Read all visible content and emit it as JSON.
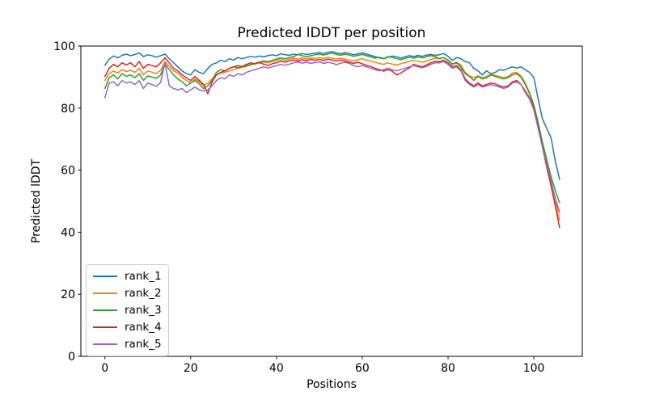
{
  "figure": {
    "background": "#ffffff",
    "spine_color": "#000000",
    "legend_border_color": "#cccccc"
  },
  "chart_data": {
    "type": "line",
    "title": "Predicted lDDT per position",
    "xlabel": "Positions",
    "ylabel": "Predicted lDDT",
    "xlim": [
      -5.6,
      111.3
    ],
    "ylim": [
      0,
      100
    ],
    "xticks": [
      0,
      20,
      40,
      60,
      80,
      100
    ],
    "yticks": [
      0,
      20,
      40,
      60,
      80,
      100
    ],
    "grid": false,
    "legend_position": "lower-left",
    "x": [
      0,
      1,
      2,
      3,
      4,
      5,
      6,
      7,
      8,
      9,
      10,
      11,
      12,
      13,
      14,
      15,
      16,
      17,
      18,
      19,
      20,
      21,
      22,
      23,
      24,
      25,
      26,
      27,
      28,
      29,
      30,
      31,
      32,
      33,
      34,
      35,
      36,
      37,
      38,
      39,
      40,
      41,
      42,
      43,
      44,
      45,
      46,
      47,
      48,
      49,
      50,
      51,
      52,
      53,
      54,
      55,
      56,
      57,
      58,
      59,
      60,
      61,
      62,
      63,
      64,
      65,
      66,
      67,
      68,
      69,
      70,
      71,
      72,
      73,
      74,
      75,
      76,
      77,
      78,
      79,
      80,
      81,
      82,
      83,
      84,
      85,
      86,
      87,
      88,
      89,
      90,
      91,
      92,
      93,
      94,
      95,
      96,
      97,
      98,
      99,
      100,
      101,
      102,
      103,
      104,
      105,
      106
    ],
    "series": [
      {
        "name": "rank_1",
        "color": "#1f77b4",
        "values": [
          93.8,
          95.8,
          96.8,
          96.2,
          97.0,
          97.4,
          96.9,
          97.3,
          97.8,
          96.6,
          97.2,
          96.9,
          96.4,
          96.9,
          97.4,
          95.9,
          94.6,
          93.3,
          92.0,
          91.1,
          90.7,
          92.4,
          91.5,
          91.1,
          92.8,
          94.1,
          94.6,
          95.4,
          95.0,
          95.9,
          95.5,
          96.3,
          95.9,
          96.3,
          96.7,
          96.4,
          96.8,
          96.5,
          96.9,
          97.2,
          96.9,
          97.5,
          97.2,
          97.0,
          97.4,
          97.2,
          97.6,
          97.3,
          97.5,
          97.7,
          97.9,
          97.6,
          98.0,
          98.2,
          97.8,
          97.5,
          97.9,
          97.6,
          97.2,
          97.5,
          97.8,
          97.4,
          97.0,
          96.6,
          96.2,
          95.9,
          96.4,
          96.8,
          96.5,
          96.1,
          96.6,
          96.9,
          96.6,
          97.0,
          96.7,
          97.1,
          97.3,
          97.0,
          97.2,
          97.6,
          96.7,
          95.4,
          96.3,
          95.9,
          95.0,
          94.6,
          92.8,
          92.0,
          90.7,
          92.0,
          91.1,
          91.5,
          92.4,
          92.2,
          92.8,
          93.3,
          92.9,
          93.3,
          92.4,
          91.5,
          89.8,
          83.0,
          76.5,
          73.5,
          70.5,
          63.0,
          57.0
        ]
      },
      {
        "name": "rank_2",
        "color": "#ff7f0e",
        "values": [
          88.9,
          91.1,
          92.0,
          91.3,
          92.4,
          91.8,
          92.2,
          91.5,
          92.8,
          90.7,
          92.0,
          91.6,
          91.1,
          92.2,
          95.0,
          93.5,
          92.0,
          91.3,
          89.8,
          88.9,
          88.1,
          89.4,
          88.5,
          87.2,
          88.1,
          89.4,
          90.7,
          91.3,
          91.5,
          92.0,
          92.4,
          92.8,
          93.1,
          93.5,
          93.9,
          94.2,
          94.6,
          94.9,
          94.6,
          95.0,
          95.3,
          95.7,
          95.4,
          95.8,
          96.1,
          95.8,
          96.2,
          95.9,
          96.2,
          96.0,
          96.3,
          96.0,
          96.4,
          96.1,
          95.8,
          96.1,
          95.8,
          95.5,
          95.2,
          95.6,
          95.9,
          95.5,
          95.1,
          94.8,
          94.4,
          94.1,
          94.6,
          94.2,
          93.9,
          94.3,
          94.7,
          95.1,
          95.4,
          95.1,
          94.8,
          95.2,
          95.7,
          96.1,
          96.0,
          96.3,
          95.5,
          94.3,
          94.8,
          93.9,
          91.5,
          90.4,
          89.8,
          90.4,
          89.8,
          90.2,
          90.9,
          90.5,
          90.2,
          89.8,
          90.2,
          91.3,
          91.5,
          90.4,
          88.1,
          85.0,
          81.1,
          75.5,
          69.0,
          62.5,
          56.5,
          50.5,
          44.0
        ]
      },
      {
        "name": "rank_3",
        "color": "#2ca02c",
        "values": [
          86.3,
          89.8,
          90.7,
          89.4,
          91.1,
          90.2,
          90.7,
          89.8,
          91.1,
          88.9,
          90.4,
          90.0,
          89.6,
          90.7,
          94.3,
          92.4,
          90.7,
          89.4,
          88.5,
          87.2,
          88.1,
          88.9,
          87.8,
          86.3,
          87.2,
          88.9,
          91.5,
          92.4,
          92.0,
          92.8,
          93.3,
          93.0,
          93.4,
          93.7,
          94.1,
          94.4,
          94.8,
          95.2,
          95.0,
          95.4,
          95.8,
          96.2,
          95.9,
          96.3,
          96.6,
          97.3,
          96.9,
          96.6,
          96.9,
          97.2,
          97.4,
          97.1,
          97.5,
          97.7,
          97.3,
          97.0,
          97.4,
          97.1,
          96.7,
          97.0,
          97.3,
          96.9,
          96.5,
          96.1,
          96.4,
          96.0,
          96.6,
          96.3,
          95.9,
          95.6,
          96.0,
          96.4,
          96.1,
          96.5,
          96.2,
          96.6,
          96.9,
          96.6,
          95.9,
          96.3,
          95.4,
          94.1,
          94.6,
          93.3,
          91.1,
          90.2,
          88.9,
          90.2,
          89.4,
          89.8,
          90.7,
          90.2,
          89.8,
          89.4,
          89.8,
          90.7,
          91.1,
          90.0,
          87.6,
          84.6,
          80.7,
          75.0,
          69.0,
          63.5,
          58.0,
          53.5,
          49.5
        ]
      },
      {
        "name": "rank_4",
        "color": "#d62728",
        "values": [
          90.2,
          92.8,
          94.1,
          93.3,
          94.6,
          93.9,
          94.6,
          93.3,
          95.0,
          92.8,
          94.1,
          93.7,
          93.3,
          94.6,
          96.2,
          94.6,
          92.8,
          92.0,
          90.7,
          89.8,
          88.9,
          90.2,
          88.9,
          87.6,
          84.6,
          88.5,
          90.7,
          91.5,
          92.0,
          92.8,
          93.3,
          93.7,
          93.4,
          94.1,
          94.6,
          94.3,
          94.7,
          94.2,
          93.7,
          94.3,
          94.6,
          95.1,
          94.8,
          95.2,
          95.5,
          95.2,
          95.6,
          95.3,
          95.7,
          95.4,
          95.7,
          95.3,
          95.8,
          95.5,
          95.1,
          95.5,
          95.2,
          94.8,
          94.4,
          94.8,
          94.3,
          93.8,
          93.4,
          92.8,
          92.4,
          91.9,
          92.4,
          91.9,
          90.7,
          91.3,
          92.2,
          93.0,
          94.1,
          93.7,
          93.3,
          93.9,
          94.6,
          95.1,
          95.0,
          95.4,
          94.6,
          93.3,
          93.7,
          92.4,
          89.4,
          88.1,
          87.2,
          88.1,
          87.2,
          87.6,
          88.1,
          87.8,
          87.2,
          86.8,
          87.2,
          88.5,
          88.9,
          87.6,
          85.5,
          83.3,
          79.8,
          74.0,
          67.5,
          61.0,
          55.0,
          48.5,
          41.5
        ]
      },
      {
        "name": "rank_5",
        "color": "#9467bd",
        "values": [
          83.3,
          88.1,
          88.5,
          87.2,
          88.9,
          88.1,
          88.5,
          87.6,
          88.9,
          86.3,
          88.1,
          87.6,
          87.0,
          88.3,
          94.5,
          87.2,
          86.3,
          85.9,
          86.3,
          85.0,
          85.9,
          86.8,
          85.9,
          85.5,
          85.9,
          87.2,
          88.9,
          89.8,
          89.4,
          90.7,
          90.2,
          91.1,
          90.7,
          91.5,
          92.0,
          92.4,
          92.8,
          93.3,
          92.9,
          93.3,
          93.7,
          94.1,
          93.8,
          94.2,
          94.6,
          94.9,
          94.5,
          94.8,
          94.4,
          94.7,
          94.9,
          94.4,
          94.8,
          94.5,
          94.0,
          94.5,
          94.8,
          94.4,
          93.7,
          93.3,
          93.7,
          93.3,
          92.8,
          92.4,
          92.0,
          92.4,
          92.9,
          92.4,
          92.0,
          92.4,
          92.9,
          93.3,
          93.7,
          93.3,
          93.0,
          93.5,
          94.1,
          94.6,
          94.6,
          95.0,
          94.1,
          92.8,
          93.3,
          92.0,
          88.9,
          87.6,
          86.8,
          87.6,
          86.8,
          87.2,
          87.6,
          87.2,
          86.8,
          86.3,
          86.8,
          88.1,
          88.5,
          87.6,
          85.0,
          82.9,
          79.4,
          73.5,
          67.5,
          62.0,
          56.5,
          51.0,
          46.5
        ]
      }
    ]
  },
  "legend": {
    "items": [
      {
        "label": "rank_1",
        "color": "#1f77b4"
      },
      {
        "label": "rank_2",
        "color": "#ff7f0e"
      },
      {
        "label": "rank_3",
        "color": "#2ca02c"
      },
      {
        "label": "rank_4",
        "color": "#d62728"
      },
      {
        "label": "rank_5",
        "color": "#9467bd"
      }
    ]
  }
}
